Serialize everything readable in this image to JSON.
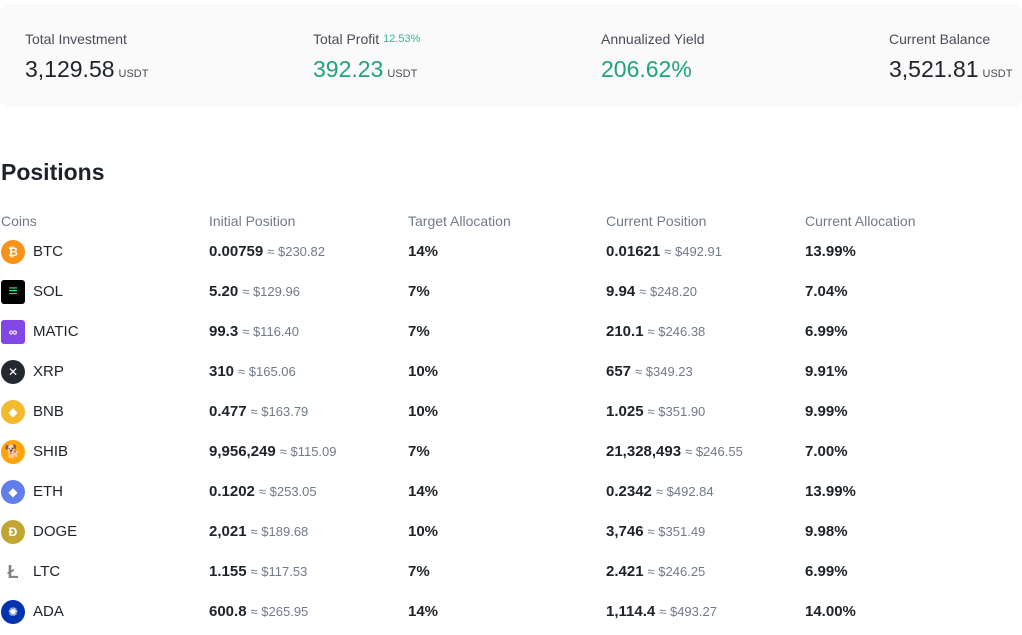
{
  "summary": {
    "total_investment": {
      "label": "Total Investment",
      "value": "3,129.58",
      "unit": "USDT"
    },
    "total_profit": {
      "label": "Total Profit",
      "percent": "12.53%",
      "value": "392.23",
      "unit": "USDT"
    },
    "annualized_yield": {
      "label": "Annualized Yield",
      "value": "206.62%"
    },
    "current_balance": {
      "label": "Current Balance",
      "value": "3,521.81",
      "unit": "USDT"
    }
  },
  "positions": {
    "title": "Positions",
    "columns": [
      "Coins",
      "Initial Position",
      "Target Allocation",
      "Current Position",
      "Current Allocation"
    ],
    "rows": [
      {
        "coin": "BTC",
        "icon": "btc-icon",
        "color": "#f7931a",
        "initial": "0.00759",
        "initial_usd": "≈ $230.82",
        "target": "14%",
        "current": "0.01621",
        "current_usd": "≈ $492.91",
        "allocation": "13.99%"
      },
      {
        "coin": "SOL",
        "icon": "sol-icon",
        "color": "#000000",
        "initial": "5.20",
        "initial_usd": "≈ $129.96",
        "target": "7%",
        "current": "9.94",
        "current_usd": "≈ $248.20",
        "allocation": "7.04%"
      },
      {
        "coin": "MATIC",
        "icon": "matic-icon",
        "color": "#8247e5",
        "initial": "99.3",
        "initial_usd": "≈ $116.40",
        "target": "7%",
        "current": "210.1",
        "current_usd": "≈ $246.38",
        "allocation": "6.99%"
      },
      {
        "coin": "XRP",
        "icon": "xrp-icon",
        "color": "#23292f",
        "initial": "310",
        "initial_usd": "≈ $165.06",
        "target": "10%",
        "current": "657",
        "current_usd": "≈ $349.23",
        "allocation": "9.91%"
      },
      {
        "coin": "BNB",
        "icon": "bnb-icon",
        "color": "#f3ba2f",
        "initial": "0.477",
        "initial_usd": "≈ $163.79",
        "target": "10%",
        "current": "1.025",
        "current_usd": "≈ $351.90",
        "allocation": "9.99%"
      },
      {
        "coin": "SHIB",
        "icon": "shib-icon",
        "color": "#e42d04",
        "initial": "9,956,249",
        "initial_usd": "≈ $115.09",
        "target": "7%",
        "current": "21,328,493",
        "current_usd": "≈ $246.55",
        "allocation": "7.00%"
      },
      {
        "coin": "ETH",
        "icon": "eth-icon",
        "color": "#627eea",
        "initial": "0.1202",
        "initial_usd": "≈ $253.05",
        "target": "14%",
        "current": "0.2342",
        "current_usd": "≈ $492.84",
        "allocation": "13.99%"
      },
      {
        "coin": "DOGE",
        "icon": "doge-icon",
        "color": "#c2a633",
        "initial": "2,021",
        "initial_usd": "≈ $189.68",
        "target": "10%",
        "current": "3,746",
        "current_usd": "≈ $351.49",
        "allocation": "9.98%"
      },
      {
        "coin": "LTC",
        "icon": "ltc-icon",
        "color": "#838383",
        "initial": "1.155",
        "initial_usd": "≈ $117.53",
        "target": "7%",
        "current": "2.421",
        "current_usd": "≈ $246.25",
        "allocation": "6.99%"
      },
      {
        "coin": "ADA",
        "icon": "ada-icon",
        "color": "#0033ad",
        "initial": "600.8",
        "initial_usd": "≈ $265.95",
        "target": "14%",
        "current": "1,114.4",
        "current_usd": "≈ $493.27",
        "allocation": "14.00%"
      }
    ]
  }
}
